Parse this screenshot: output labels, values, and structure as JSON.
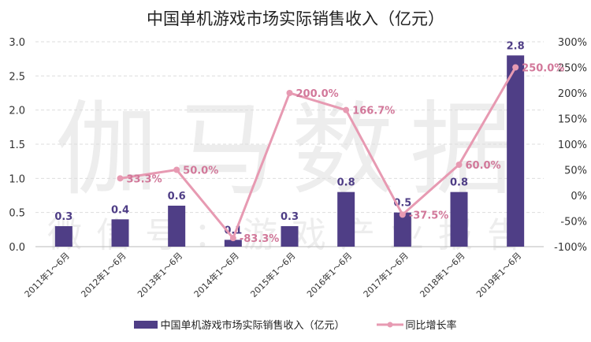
{
  "chart_data": {
    "type": "bar+line",
    "title": "中国单机游戏市场实际销售收入（亿元）",
    "categories": [
      "2011年1～6月",
      "2012年1～6月",
      "2013年1～6月",
      "2014年1～6月",
      "2015年1～6月",
      "2016年1～6月",
      "2017年1～6月",
      "2018年1～6月",
      "2019年1～6月"
    ],
    "series": [
      {
        "name": "中国单机游戏市场实际销售收入（亿元）",
        "type": "bar",
        "axis": "left",
        "color": "#4f3e86",
        "values": [
          0.3,
          0.4,
          0.6,
          0.1,
          0.3,
          0.8,
          0.5,
          0.8,
          2.8
        ],
        "labels": [
          "0.3",
          "0.4",
          "0.6",
          "0.1",
          "0.3",
          "0.8",
          "0.5",
          "0.8",
          "2.8"
        ]
      },
      {
        "name": "同比增长率",
        "type": "line",
        "axis": "right",
        "color": "#e79ab2",
        "label_color": "#d2789a",
        "values": [
          null,
          33.3,
          50.0,
          -83.3,
          200.0,
          166.7,
          -37.5,
          60.0,
          250.0
        ],
        "labels": [
          "",
          "33.3%",
          "50.0%",
          "-83.3%",
          "200.0%",
          "166.7%",
          "-37.5%",
          "60.0%",
          "250.0%"
        ]
      }
    ],
    "y_left": {
      "range": [
        0,
        3.0
      ],
      "ticks": [
        "0.0",
        "0.5",
        "1.0",
        "1.5",
        "2.0",
        "2.5",
        "3.0"
      ]
    },
    "y_right": {
      "range": [
        -100,
        300
      ],
      "ticks": [
        "-100%",
        "-50%",
        "0%",
        "50%",
        "100%",
        "150%",
        "200%",
        "250%",
        "300%"
      ]
    },
    "grid": true,
    "legend": "bottom"
  },
  "watermark": {
    "main": "伽马数据",
    "sub": "微信号：游戏产业报告"
  }
}
